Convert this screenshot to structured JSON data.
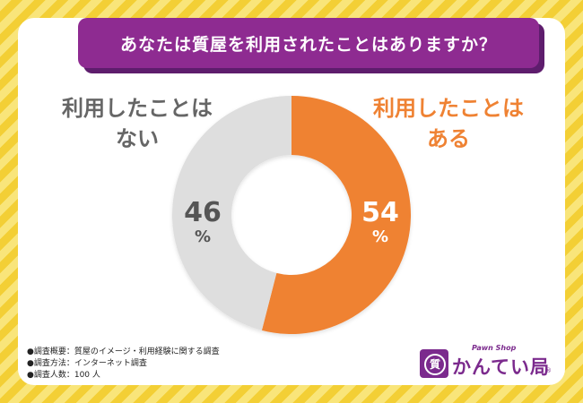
{
  "header": {
    "title": "あなたは質屋を利用されたことはありますか？"
  },
  "chart_data": {
    "type": "pie",
    "donut": true,
    "slices": [
      {
        "label_lines": [
          "利用したことは",
          "ある"
        ],
        "value": 54,
        "value_text": "54",
        "unit": "%",
        "color": "#ef8233"
      },
      {
        "label_lines": [
          "利用したことは",
          "ない"
        ],
        "value": 46,
        "value_text": "46",
        "unit": "%",
        "color": "#dedede"
      }
    ]
  },
  "notes": [
    "●調査概要：質屋のイメージ・利用経験に関する調査",
    "●調査方法：インターネット調査",
    "●調査人数：100 人"
  ],
  "logo": {
    "mark": "質",
    "tagline": "Pawn Shop",
    "name": "かんてい局",
    "registered": "®"
  }
}
